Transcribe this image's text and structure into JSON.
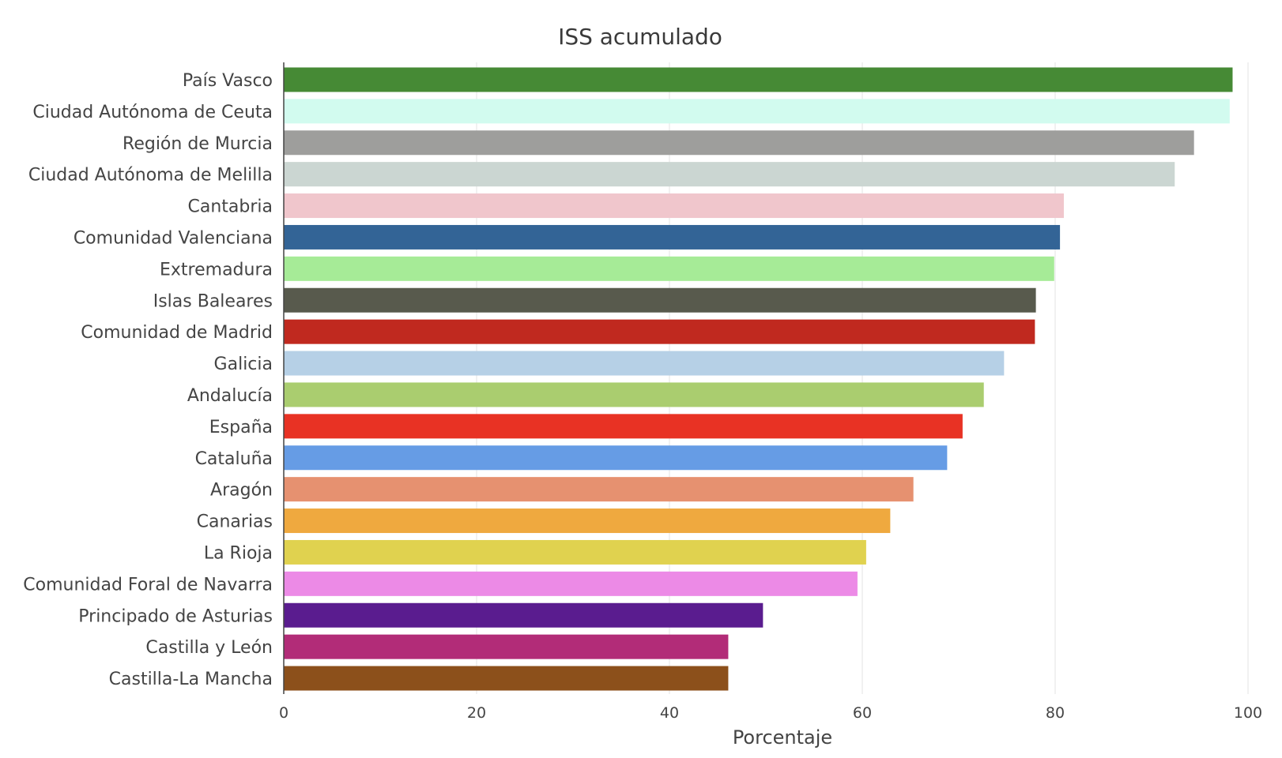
{
  "chart_data": {
    "type": "bar",
    "orientation": "horizontal",
    "title": "ISS acumulado",
    "xlabel": "Porcentaje",
    "ylabel": "",
    "xlim": [
      0,
      100
    ],
    "xticks": [
      0,
      20,
      40,
      60,
      80,
      100
    ],
    "grid": true,
    "legend": "none",
    "categories": [
      "País Vasco",
      "Ciudad Autónoma de Ceuta",
      "Región de Murcia",
      "Ciudad Autónoma de Melilla",
      "Cantabria",
      "Comunidad Valenciana",
      "Extremadura",
      "Islas Baleares",
      "Comunidad de Madrid",
      "Galicia",
      "Andalucía",
      "España",
      "Cataluña",
      "Aragón",
      "Canarias",
      "La Rioja",
      "Comunidad Foral de Navarra",
      "Principado de Asturias",
      "Castilla y León",
      "Castilla-La Mancha"
    ],
    "values": [
      98.4,
      98.1,
      94.4,
      92.4,
      80.9,
      80.5,
      79.9,
      78.0,
      77.9,
      74.7,
      72.6,
      70.4,
      68.8,
      65.3,
      62.9,
      60.4,
      59.5,
      49.7,
      46.1,
      46.1
    ],
    "colors": [
      "#468a35",
      "#d2fbef",
      "#9e9e9c",
      "#cbd6d2",
      "#f0c6cc",
      "#336496",
      "#a6eb97",
      "#585a4d",
      "#c0291f",
      "#b6d0e6",
      "#aacd6f",
      "#e83224",
      "#669ce5",
      "#e69170",
      "#efa93f",
      "#e0d24f",
      "#ec8ae6",
      "#5a1c8f",
      "#b22c78",
      "#8c501b"
    ]
  }
}
